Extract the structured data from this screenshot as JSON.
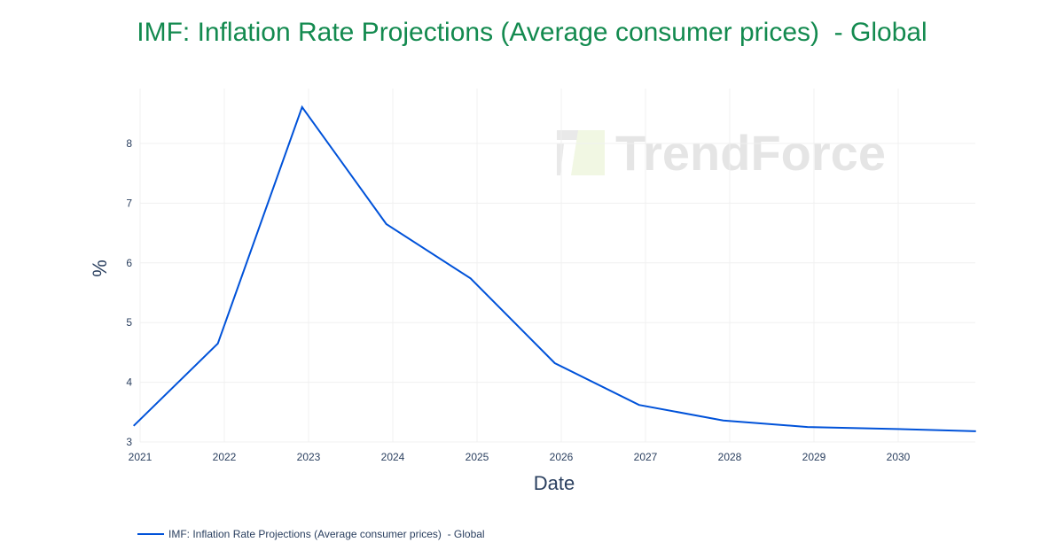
{
  "chart_data": {
    "type": "line",
    "title": "IMF: Inflation Rate Projections (Average consumer prices)  - Global",
    "xlabel": "Date",
    "ylabel": "%",
    "x_tick_labels": [
      "2021",
      "2022",
      "2023",
      "2024",
      "2025",
      "2026",
      "2027",
      "2028",
      "2029",
      "2030"
    ],
    "y_tick_labels": [
      "3",
      "4",
      "5",
      "6",
      "7",
      "8"
    ],
    "ylim": [
      3,
      8.95
    ],
    "xlim": [
      "2021-01-01",
      "2030-12-01"
    ],
    "grid": true,
    "legend_position": "bottom-left",
    "watermark": "TrendForce",
    "series": [
      {
        "name": "IMF: Inflation Rate Projections (Average consumer prices)  - Global",
        "color": "#0052d9",
        "x": [
          "2020-12-04",
          "2021-12-04",
          "2022-12-04",
          "2023-12-04",
          "2024-12-04",
          "2025-12-04",
          "2026-12-04",
          "2027-12-04",
          "2028-12-04",
          "2029-12-04",
          "2030-12-04"
        ],
        "y": [
          3.27,
          4.65,
          8.61,
          6.65,
          5.74,
          4.32,
          3.62,
          3.36,
          3.25,
          3.22,
          3.18
        ]
      }
    ]
  }
}
